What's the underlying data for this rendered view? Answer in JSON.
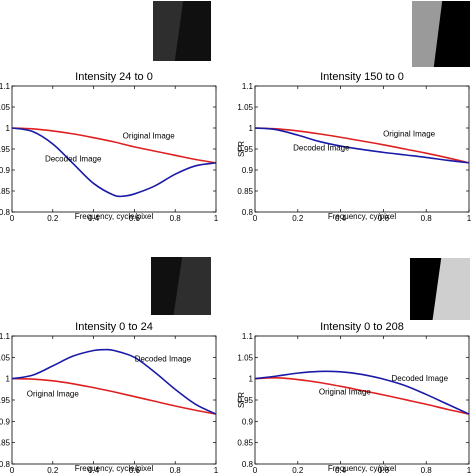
{
  "chart_data": [
    {
      "type": "line",
      "title": "Intensity 24 to 0",
      "xlabel": "Frequency, cycle/pixel",
      "ylabel": "",
      "xlim": [
        0,
        1
      ],
      "ylim": [
        0.8,
        1.1
      ],
      "xticks": [
        "0",
        "0.2",
        "0.4",
        "0.6",
        "0.8",
        "1"
      ],
      "yticks": [
        "0.8",
        "0.85",
        "0.9",
        "0.95",
        "1",
        "1.05",
        "1.1"
      ],
      "x": [
        0,
        0.1,
        0.2,
        0.3,
        0.4,
        0.5,
        0.55,
        0.6,
        0.7,
        0.8,
        0.9,
        1.0
      ],
      "series": [
        {
          "name": "Original Image",
          "color": "#e02020",
          "values": [
            1.0,
            0.998,
            0.993,
            0.986,
            0.977,
            0.967,
            0.961,
            0.955,
            0.945,
            0.935,
            0.925,
            0.917
          ]
        },
        {
          "name": "Decoded Image",
          "color": "#1a1aa8",
          "values": [
            1.0,
            0.992,
            0.962,
            0.915,
            0.868,
            0.84,
            0.838,
            0.843,
            0.862,
            0.89,
            0.91,
            0.917
          ]
        }
      ],
      "annotations": [
        {
          "text": "Original Image",
          "x": 0.67,
          "y": 0.975
        },
        {
          "text": "Decoded Image",
          "x": 0.3,
          "y": 0.92
        }
      ],
      "grid": false,
      "inset": {
        "description": "edge patch",
        "left_color": "#2e2e2e",
        "right_color": "#101010",
        "frame_color": "#ffffff"
      }
    },
    {
      "type": "line",
      "title": "Intensity 150 to 0",
      "xlabel": "Frequency, cy/pixel",
      "ylabel": "SFR",
      "xlim": [
        0,
        1
      ],
      "ylim": [
        0.8,
        1.1
      ],
      "xticks": [
        "0",
        "0.2",
        "0.4",
        "0.6",
        "0.8",
        "1"
      ],
      "yticks": [
        "0.8",
        "0.85",
        "0.9",
        "0.95",
        "1",
        "1.05",
        "1.1"
      ],
      "x": [
        0,
        0.1,
        0.2,
        0.3,
        0.4,
        0.5,
        0.6,
        0.7,
        0.8,
        0.9,
        1.0
      ],
      "series": [
        {
          "name": "Original Image",
          "color": "#e02020",
          "values": [
            1.0,
            0.998,
            0.993,
            0.986,
            0.978,
            0.969,
            0.96,
            0.95,
            0.94,
            0.929,
            0.917
          ]
        },
        {
          "name": "Decoded Image",
          "color": "#1a1aa8",
          "values": [
            1.0,
            0.996,
            0.983,
            0.968,
            0.957,
            0.949,
            0.942,
            0.936,
            0.93,
            0.923,
            0.917
          ]
        }
      ],
      "annotations": [
        {
          "text": "Original Image",
          "x": 0.72,
          "y": 0.98
        },
        {
          "text": "Decoded Image",
          "x": 0.31,
          "y": 0.946
        }
      ],
      "grid": false,
      "inset": {
        "description": "edge patch",
        "left_color": "#9a9a9a",
        "right_color": "#000000",
        "frame_color": "#ffffff"
      }
    },
    {
      "type": "line",
      "title": "Intensity 0 to 24",
      "xlabel": "Frequency, cycle/pixel",
      "ylabel": "",
      "xlim": [
        0,
        1
      ],
      "ylim": [
        0.8,
        1.1
      ],
      "xticks": [
        "0",
        "0.2",
        "0.4",
        "0.6",
        "0.8",
        "1"
      ],
      "yticks": [
        "0.8",
        "0.85",
        "0.9",
        "0.95",
        "1",
        "1.05",
        "1.1"
      ],
      "x": [
        0,
        0.1,
        0.2,
        0.3,
        0.4,
        0.45,
        0.5,
        0.6,
        0.7,
        0.8,
        0.9,
        1.0
      ],
      "series": [
        {
          "name": "Original Image",
          "color": "#e02020",
          "values": [
            1.0,
            0.999,
            0.995,
            0.988,
            0.979,
            0.974,
            0.969,
            0.958,
            0.947,
            0.936,
            0.926,
            0.917
          ]
        },
        {
          "name": "Decoded Image",
          "color": "#1a1aa8",
          "values": [
            1.0,
            1.008,
            1.03,
            1.053,
            1.066,
            1.068,
            1.066,
            1.05,
            1.015,
            0.975,
            0.94,
            0.917
          ]
        }
      ],
      "annotations": [
        {
          "text": "Decoded Image",
          "x": 0.74,
          "y": 1.04
        },
        {
          "text": "Original Image",
          "x": 0.2,
          "y": 0.958
        }
      ],
      "grid": false,
      "inset": {
        "description": "edge patch",
        "left_color": "#101010",
        "right_color": "#2e2e2e",
        "frame_color": "#ffffff"
      }
    },
    {
      "type": "line",
      "title": "Intensity 0 to 208",
      "xlabel": "Frequency, cy/pixel",
      "ylabel": "SFR",
      "xlim": [
        0,
        1
      ],
      "ylim": [
        0.8,
        1.1
      ],
      "xticks": [
        "0",
        "0.2",
        "0.4",
        "0.6",
        "0.8",
        "1"
      ],
      "yticks": [
        "0.8",
        "0.85",
        "0.9",
        "0.95",
        "1",
        "1.05",
        "1.1"
      ],
      "x": [
        0,
        0.1,
        0.2,
        0.3,
        0.4,
        0.5,
        0.6,
        0.7,
        0.8,
        0.9,
        1.0
      ],
      "series": [
        {
          "name": "Original Image",
          "color": "#e02020",
          "values": [
            1.0,
            1.002,
            0.998,
            0.991,
            0.982,
            0.972,
            0.962,
            0.951,
            0.94,
            0.928,
            0.917
          ]
        },
        {
          "name": "Decoded Image",
          "color": "#1a1aa8",
          "values": [
            1.0,
            1.006,
            1.013,
            1.017,
            1.016,
            1.01,
            0.999,
            0.984,
            0.963,
            0.94,
            0.917
          ]
        }
      ],
      "annotations": [
        {
          "text": "Decoded Image",
          "x": 0.77,
          "y": 0.995
        },
        {
          "text": "Original Image",
          "x": 0.42,
          "y": 0.963
        }
      ],
      "grid": false,
      "inset": {
        "description": "edge patch",
        "left_color": "#000000",
        "right_color": "#cfcfcf",
        "frame_color": "#ffffff"
      }
    }
  ]
}
